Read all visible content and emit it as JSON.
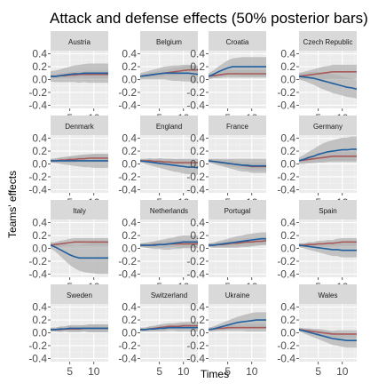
{
  "chart_data": {
    "type": "line",
    "title": "Attack and defense effects (50% posterior bars)",
    "xlabel": "Times",
    "ylabel": "Teams' effects",
    "x_ticks": [
      5,
      10
    ],
    "y_ticks": [
      -0.4,
      -0.2,
      0.0,
      0.2,
      0.4
    ],
    "y_tick_labels": [
      "-0.4",
      "-0.2",
      "0.0",
      "0.2",
      "0.4"
    ],
    "x_tick_labels": [
      "5",
      "10"
    ],
    "xlim": [
      1,
      13
    ],
    "ylim": [
      -0.45,
      0.45
    ],
    "grid": true,
    "colors": {
      "attack_line": "#1f5fa0",
      "defense_line": "#a85a5a",
      "band": "#b3b3b3",
      "panel_bg": "#ebebeb",
      "strip_bg": "#d9d9d9",
      "grid_major": "#ffffff",
      "grid_minor": "#f5f5f5"
    },
    "x": [
      1,
      2,
      3,
      4,
      5,
      6,
      7,
      8,
      9,
      10,
      11,
      12,
      13
    ],
    "panels": [
      {
        "team": "Austria",
        "attack": [
          0.05,
          0.05,
          0.06,
          0.07,
          0.08,
          0.09,
          0.09,
          0.1,
          0.1,
          0.1,
          0.1,
          0.1,
          0.1
        ],
        "attack_band": [
          0.08,
          0.09,
          0.1,
          0.11,
          0.12,
          0.13,
          0.14,
          0.14,
          0.15,
          0.15,
          0.15,
          0.15,
          0.15
        ],
        "defense": [
          0.05,
          0.05,
          0.06,
          0.06,
          0.07,
          0.07,
          0.08,
          0.08,
          0.08,
          0.08,
          0.08,
          0.08,
          0.08
        ],
        "defense_band": [
          0.03,
          0.03,
          0.04,
          0.04,
          0.05,
          0.05,
          0.05,
          0.05,
          0.06,
          0.06,
          0.06,
          0.06,
          0.06
        ]
      },
      {
        "team": "Belgium",
        "attack": [
          0.05,
          0.06,
          0.07,
          0.08,
          0.09,
          0.1,
          0.1,
          0.1,
          0.1,
          0.1,
          0.1,
          0.09,
          0.08
        ],
        "attack_band": [
          0.05,
          0.06,
          0.07,
          0.08,
          0.09,
          0.1,
          0.11,
          0.12,
          0.12,
          0.13,
          0.13,
          0.13,
          0.13
        ],
        "defense": [
          0.05,
          0.06,
          0.07,
          0.08,
          0.09,
          0.1,
          0.11,
          0.12,
          0.13,
          0.14,
          0.15,
          0.15,
          0.15
        ],
        "defense_band": [
          0.03,
          0.03,
          0.04,
          0.04,
          0.05,
          0.05,
          0.05,
          0.06,
          0.06,
          0.06,
          0.07,
          0.07,
          0.07
        ]
      },
      {
        "team": "Croatia",
        "attack": [
          0.05,
          0.08,
          0.12,
          0.15,
          0.18,
          0.2,
          0.2,
          0.2,
          0.2,
          0.2,
          0.2,
          0.2,
          0.2
        ],
        "attack_band": [
          0.05,
          0.06,
          0.08,
          0.1,
          0.12,
          0.13,
          0.14,
          0.15,
          0.15,
          0.15,
          0.15,
          0.15,
          0.15
        ],
        "defense": [
          0.05,
          0.06,
          0.07,
          0.08,
          0.09,
          0.09,
          0.09,
          0.09,
          0.09,
          0.09,
          0.09,
          0.09,
          0.09
        ],
        "defense_band": [
          0.03,
          0.04,
          0.05,
          0.05,
          0.06,
          0.06,
          0.06,
          0.06,
          0.06,
          0.06,
          0.06,
          0.06,
          0.06
        ]
      },
      {
        "team": "Czech Republic",
        "attack": [
          0.05,
          0.04,
          0.03,
          0.02,
          0.0,
          -0.02,
          -0.04,
          -0.06,
          -0.08,
          -0.1,
          -0.12,
          -0.13,
          -0.15
        ],
        "attack_band": [
          0.05,
          0.06,
          0.08,
          0.1,
          0.12,
          0.13,
          0.14,
          0.15,
          0.15,
          0.15,
          0.15,
          0.15,
          0.15
        ],
        "defense": [
          0.05,
          0.06,
          0.07,
          0.08,
          0.09,
          0.1,
          0.11,
          0.12,
          0.12,
          0.12,
          0.12,
          0.12,
          0.12
        ],
        "defense_band": [
          0.05,
          0.06,
          0.07,
          0.08,
          0.09,
          0.1,
          0.1,
          0.11,
          0.11,
          0.11,
          0.11,
          0.11,
          0.11
        ]
      },
      {
        "team": "Denmark",
        "attack": [
          0.05,
          0.05,
          0.05,
          0.05,
          0.05,
          0.05,
          0.05,
          0.05,
          0.05,
          0.05,
          0.05,
          0.05,
          0.05
        ],
        "attack_band": [
          0.03,
          0.04,
          0.05,
          0.06,
          0.07,
          0.08,
          0.09,
          0.1,
          0.1,
          0.11,
          0.11,
          0.11,
          0.11
        ],
        "defense": [
          0.05,
          0.05,
          0.06,
          0.06,
          0.07,
          0.07,
          0.08,
          0.08,
          0.09,
          0.09,
          0.09,
          0.09,
          0.09
        ],
        "defense_band": [
          0.03,
          0.03,
          0.04,
          0.04,
          0.05,
          0.05,
          0.05,
          0.05,
          0.06,
          0.06,
          0.06,
          0.06,
          0.06
        ]
      },
      {
        "team": "England",
        "attack": [
          0.05,
          0.04,
          0.03,
          0.02,
          0.01,
          0.0,
          -0.01,
          -0.02,
          -0.03,
          -0.04,
          -0.05,
          -0.05,
          -0.06
        ],
        "attack_band": [
          0.03,
          0.04,
          0.05,
          0.06,
          0.07,
          0.08,
          0.09,
          0.1,
          0.1,
          0.11,
          0.11,
          0.11,
          0.11
        ],
        "defense": [
          0.05,
          0.05,
          0.05,
          0.04,
          0.04,
          0.03,
          0.03,
          0.02,
          0.02,
          0.02,
          0.02,
          0.02,
          0.02
        ],
        "defense_band": [
          0.03,
          0.03,
          0.04,
          0.04,
          0.05,
          0.05,
          0.05,
          0.05,
          0.06,
          0.06,
          0.06,
          0.06,
          0.06
        ]
      },
      {
        "team": "France",
        "attack": [
          0.05,
          0.04,
          0.03,
          0.02,
          0.01,
          0.0,
          -0.01,
          -0.02,
          -0.02,
          -0.03,
          -0.03,
          -0.03,
          -0.03
        ],
        "attack_band": [
          0.03,
          0.04,
          0.05,
          0.06,
          0.07,
          0.08,
          0.09,
          0.1,
          0.1,
          0.11,
          0.11,
          0.11,
          0.11
        ],
        "defense": [
          0.05,
          0.04,
          0.03,
          0.02,
          0.01,
          0.0,
          -0.01,
          -0.02,
          -0.03,
          -0.04,
          -0.04,
          -0.04,
          -0.04
        ],
        "defense_band": [
          0.03,
          0.03,
          0.04,
          0.04,
          0.05,
          0.05,
          0.05,
          0.05,
          0.06,
          0.06,
          0.06,
          0.06,
          0.06
        ]
      },
      {
        "team": "Germany",
        "attack": [
          0.05,
          0.07,
          0.1,
          0.12,
          0.15,
          0.17,
          0.19,
          0.2,
          0.21,
          0.22,
          0.22,
          0.23,
          0.23
        ],
        "attack_band": [
          0.05,
          0.07,
          0.09,
          0.11,
          0.13,
          0.15,
          0.16,
          0.17,
          0.18,
          0.19,
          0.19,
          0.2,
          0.2
        ],
        "defense": [
          0.05,
          0.06,
          0.07,
          0.08,
          0.09,
          0.1,
          0.11,
          0.12,
          0.12,
          0.12,
          0.12,
          0.12,
          0.12
        ],
        "defense_band": [
          0.03,
          0.04,
          0.05,
          0.05,
          0.06,
          0.06,
          0.07,
          0.07,
          0.07,
          0.07,
          0.07,
          0.07,
          0.07
        ]
      },
      {
        "team": "Italy",
        "attack": [
          0.05,
          0.02,
          -0.02,
          -0.06,
          -0.1,
          -0.13,
          -0.15,
          -0.15,
          -0.15,
          -0.15,
          -0.15,
          -0.15,
          -0.15
        ],
        "attack_band": [
          0.05,
          0.07,
          0.1,
          0.13,
          0.16,
          0.18,
          0.2,
          0.22,
          0.23,
          0.24,
          0.25,
          0.25,
          0.25
        ],
        "defense": [
          0.05,
          0.06,
          0.07,
          0.08,
          0.09,
          0.1,
          0.1,
          0.1,
          0.1,
          0.1,
          0.1,
          0.1,
          0.1
        ],
        "defense_band": [
          0.03,
          0.04,
          0.05,
          0.05,
          0.06,
          0.06,
          0.06,
          0.06,
          0.06,
          0.06,
          0.06,
          0.06,
          0.06
        ]
      },
      {
        "team": "Netherlands",
        "attack": [
          0.05,
          0.05,
          0.05,
          0.05,
          0.06,
          0.06,
          0.07,
          0.08,
          0.09,
          0.1,
          0.1,
          0.1,
          0.1
        ],
        "attack_band": [
          0.03,
          0.04,
          0.05,
          0.06,
          0.07,
          0.08,
          0.09,
          0.09,
          0.1,
          0.1,
          0.1,
          0.1,
          0.1
        ],
        "defense": [
          0.05,
          0.05,
          0.05,
          0.06,
          0.06,
          0.06,
          0.07,
          0.07,
          0.07,
          0.07,
          0.07,
          0.07,
          0.07
        ],
        "defense_band": [
          0.03,
          0.03,
          0.04,
          0.04,
          0.05,
          0.05,
          0.05,
          0.05,
          0.06,
          0.06,
          0.06,
          0.06,
          0.06
        ]
      },
      {
        "team": "Portugal",
        "attack": [
          0.05,
          0.05,
          0.06,
          0.07,
          0.08,
          0.09,
          0.1,
          0.11,
          0.12,
          0.13,
          0.14,
          0.15,
          0.15
        ],
        "attack_band": [
          0.03,
          0.04,
          0.05,
          0.06,
          0.07,
          0.08,
          0.09,
          0.09,
          0.1,
          0.1,
          0.1,
          0.1,
          0.1
        ],
        "defense": [
          0.05,
          0.05,
          0.06,
          0.06,
          0.07,
          0.08,
          0.08,
          0.09,
          0.1,
          0.1,
          0.11,
          0.11,
          0.12
        ],
        "defense_band": [
          0.03,
          0.03,
          0.04,
          0.04,
          0.05,
          0.05,
          0.05,
          0.05,
          0.06,
          0.06,
          0.06,
          0.06,
          0.06
        ]
      },
      {
        "team": "Spain",
        "attack": [
          0.05,
          0.04,
          0.03,
          0.02,
          0.01,
          0.0,
          -0.01,
          -0.02,
          -0.02,
          -0.03,
          -0.03,
          -0.03,
          -0.03
        ],
        "attack_band": [
          0.03,
          0.04,
          0.05,
          0.06,
          0.07,
          0.08,
          0.09,
          0.1,
          0.1,
          0.11,
          0.11,
          0.11,
          0.11
        ],
        "defense": [
          0.05,
          0.05,
          0.06,
          0.06,
          0.07,
          0.07,
          0.08,
          0.08,
          0.09,
          0.1,
          0.1,
          0.1,
          0.1
        ],
        "defense_band": [
          0.03,
          0.03,
          0.04,
          0.04,
          0.05,
          0.05,
          0.05,
          0.05,
          0.06,
          0.06,
          0.06,
          0.06,
          0.06
        ]
      },
      {
        "team": "Sweden",
        "attack": [
          0.05,
          0.05,
          0.06,
          0.06,
          0.07,
          0.07,
          0.07,
          0.07,
          0.07,
          0.07,
          0.07,
          0.07,
          0.07
        ],
        "attack_band": [
          0.03,
          0.03,
          0.04,
          0.04,
          0.05,
          0.05,
          0.05,
          0.05,
          0.06,
          0.06,
          0.06,
          0.06,
          0.06
        ],
        "defense": [
          0.05,
          0.05,
          0.05,
          0.06,
          0.06,
          0.06,
          0.06,
          0.07,
          0.07,
          0.07,
          0.07,
          0.07,
          0.07
        ],
        "defense_band": [
          0.03,
          0.03,
          0.04,
          0.04,
          0.05,
          0.05,
          0.05,
          0.05,
          0.06,
          0.06,
          0.06,
          0.06,
          0.06
        ]
      },
      {
        "team": "Switzerland",
        "attack": [
          0.05,
          0.05,
          0.06,
          0.06,
          0.07,
          0.07,
          0.08,
          0.08,
          0.08,
          0.08,
          0.08,
          0.08,
          0.08
        ],
        "attack_band": [
          0.03,
          0.03,
          0.04,
          0.04,
          0.05,
          0.05,
          0.05,
          0.05,
          0.06,
          0.06,
          0.06,
          0.06,
          0.06
        ],
        "defense": [
          0.05,
          0.05,
          0.06,
          0.07,
          0.08,
          0.09,
          0.1,
          0.1,
          0.1,
          0.11,
          0.11,
          0.11,
          0.11
        ],
        "defense_band": [
          0.03,
          0.03,
          0.04,
          0.04,
          0.05,
          0.05,
          0.05,
          0.05,
          0.06,
          0.06,
          0.06,
          0.06,
          0.06
        ]
      },
      {
        "team": "Ukraine",
        "attack": [
          0.05,
          0.06,
          0.08,
          0.1,
          0.12,
          0.14,
          0.16,
          0.17,
          0.18,
          0.19,
          0.2,
          0.2,
          0.2
        ],
        "attack_band": [
          0.03,
          0.04,
          0.05,
          0.06,
          0.07,
          0.08,
          0.09,
          0.1,
          0.11,
          0.12,
          0.12,
          0.12,
          0.12
        ],
        "defense": [
          0.05,
          0.06,
          0.07,
          0.07,
          0.08,
          0.08,
          0.08,
          0.08,
          0.08,
          0.08,
          0.08,
          0.08,
          0.08
        ],
        "defense_band": [
          0.03,
          0.03,
          0.04,
          0.04,
          0.05,
          0.05,
          0.05,
          0.05,
          0.06,
          0.06,
          0.06,
          0.06,
          0.06
        ]
      },
      {
        "team": "Wales",
        "attack": [
          0.05,
          0.03,
          0.01,
          -0.01,
          -0.03,
          -0.05,
          -0.07,
          -0.09,
          -0.1,
          -0.11,
          -0.12,
          -0.12,
          -0.12
        ],
        "attack_band": [
          0.03,
          0.04,
          0.05,
          0.06,
          0.07,
          0.08,
          0.09,
          0.1,
          0.1,
          0.11,
          0.11,
          0.11,
          0.11
        ],
        "defense": [
          0.05,
          0.04,
          0.03,
          0.02,
          0.01,
          0.0,
          -0.01,
          -0.02,
          -0.02,
          -0.02,
          -0.02,
          -0.02,
          -0.02
        ],
        "defense_band": [
          0.03,
          0.03,
          0.04,
          0.04,
          0.05,
          0.05,
          0.05,
          0.05,
          0.06,
          0.06,
          0.06,
          0.06,
          0.06
        ]
      }
    ]
  }
}
